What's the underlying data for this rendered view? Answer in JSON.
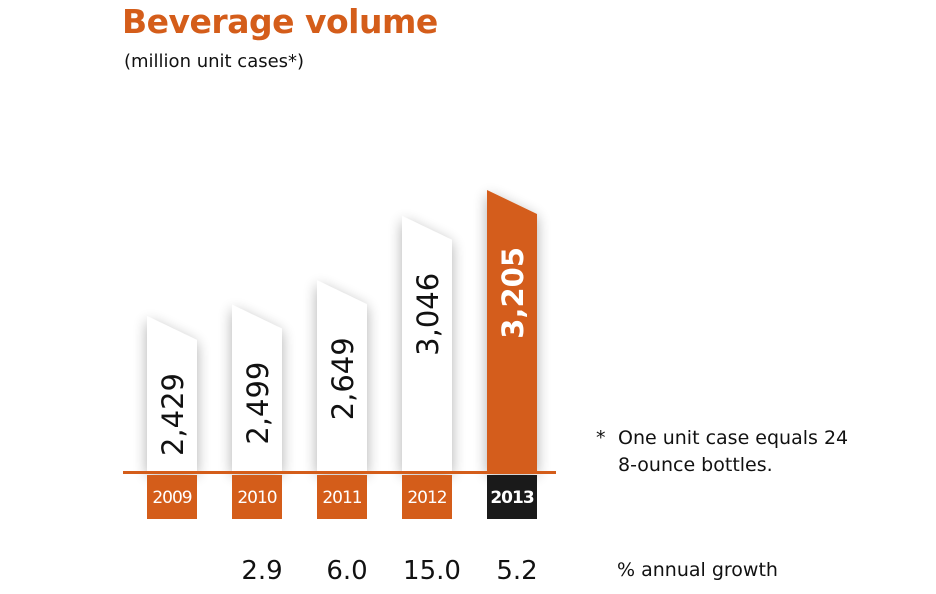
{
  "colors": {
    "accent": "#d45d1a",
    "bar": "#ffffff",
    "highlight_year_bg": "#1a1a1a",
    "text": "#111111"
  },
  "chart_data": {
    "type": "bar",
    "title": "Beverage volume",
    "subtitle": "(million unit cases*)",
    "categories": [
      "2009",
      "2010",
      "2011",
      "2012",
      "2013"
    ],
    "values": [
      2429,
      2499,
      2649,
      3046,
      3205
    ],
    "value_labels": [
      "2,429",
      "2,499",
      "2,649",
      "3,046",
      "3,205"
    ],
    "highlight_index": 4,
    "growth_label": "% annual growth",
    "growth": [
      "",
      "2.9",
      "6.0",
      "15.0",
      "5.2"
    ]
  },
  "footnote": {
    "marker": "*",
    "line1": "One unit case equals 24",
    "line2": "8-ounce bottles."
  }
}
